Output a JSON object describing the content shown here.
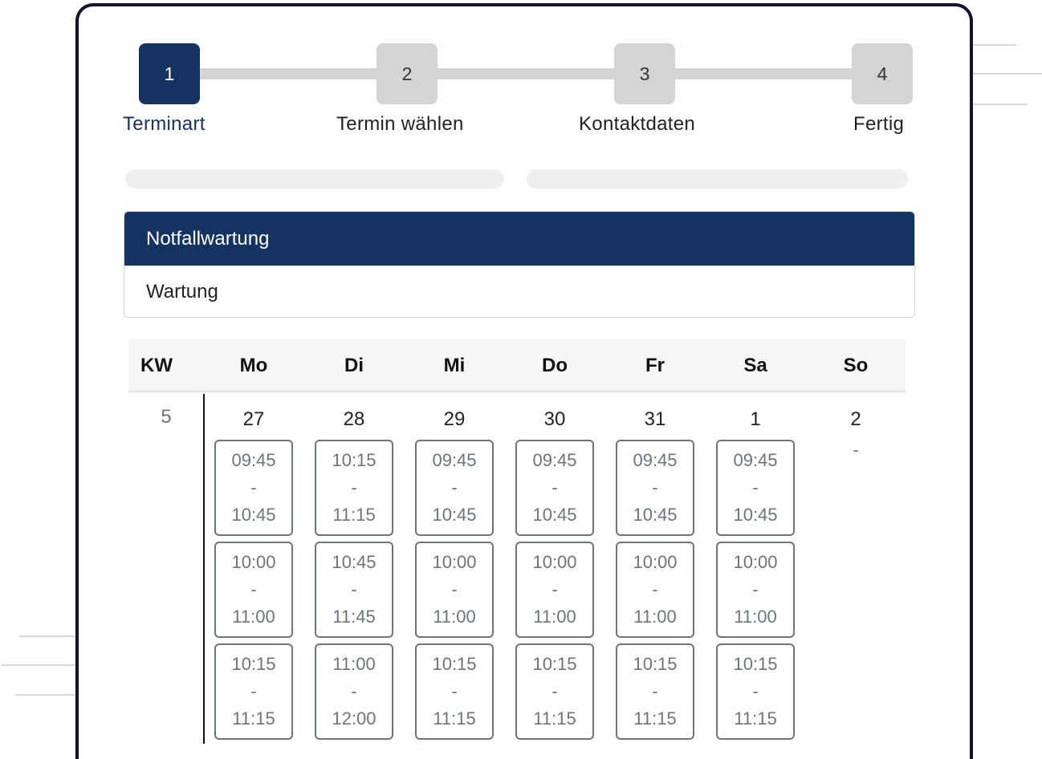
{
  "stepper": {
    "steps": [
      {
        "number": "1",
        "label": "Terminart",
        "state": "active"
      },
      {
        "number": "2",
        "label": "Termin wählen",
        "state": "inactive"
      },
      {
        "number": "3",
        "label": "Kontaktdaten",
        "state": "inactive"
      },
      {
        "number": "4",
        "label": "Fertig",
        "state": "inactive"
      }
    ]
  },
  "appointment_types": [
    {
      "label": "Notfallwartung",
      "selected": true
    },
    {
      "label": "Wartung",
      "selected": false
    }
  ],
  "calendar": {
    "week_header": "KW",
    "weekdays": [
      "Mo",
      "Di",
      "Mi",
      "Do",
      "Fr",
      "Sa",
      "So"
    ],
    "week_number": "5",
    "days": [
      {
        "date": "27",
        "slots": [
          {
            "start": "09:45",
            "sep": "-",
            "end": "10:45"
          },
          {
            "start": "10:00",
            "sep": "-",
            "end": "11:00"
          },
          {
            "start": "10:15",
            "sep": "-",
            "end": "11:15"
          }
        ]
      },
      {
        "date": "28",
        "slots": [
          {
            "start": "10:15",
            "sep": "-",
            "end": "11:15"
          },
          {
            "start": "10:45",
            "sep": "-",
            "end": "11:45"
          },
          {
            "start": "11:00",
            "sep": "-",
            "end": "12:00"
          }
        ]
      },
      {
        "date": "29",
        "slots": [
          {
            "start": "09:45",
            "sep": "-",
            "end": "10:45"
          },
          {
            "start": "10:00",
            "sep": "-",
            "end": "11:00"
          },
          {
            "start": "10:15",
            "sep": "-",
            "end": "11:15"
          }
        ]
      },
      {
        "date": "30",
        "slots": [
          {
            "start": "09:45",
            "sep": "-",
            "end": "10:45"
          },
          {
            "start": "10:00",
            "sep": "-",
            "end": "11:00"
          },
          {
            "start": "10:15",
            "sep": "-",
            "end": "11:15"
          }
        ]
      },
      {
        "date": "31",
        "slots": [
          {
            "start": "09:45",
            "sep": "-",
            "end": "10:45"
          },
          {
            "start": "10:00",
            "sep": "-",
            "end": "11:00"
          },
          {
            "start": "10:15",
            "sep": "-",
            "end": "11:15"
          }
        ]
      },
      {
        "date": "1",
        "slots": [
          {
            "start": "09:45",
            "sep": "-",
            "end": "10:45"
          },
          {
            "start": "10:00",
            "sep": "-",
            "end": "11:00"
          },
          {
            "start": "10:15",
            "sep": "-",
            "end": "11:15"
          }
        ]
      },
      {
        "date": "2",
        "slots": [],
        "empty_text": "-"
      }
    ]
  }
}
